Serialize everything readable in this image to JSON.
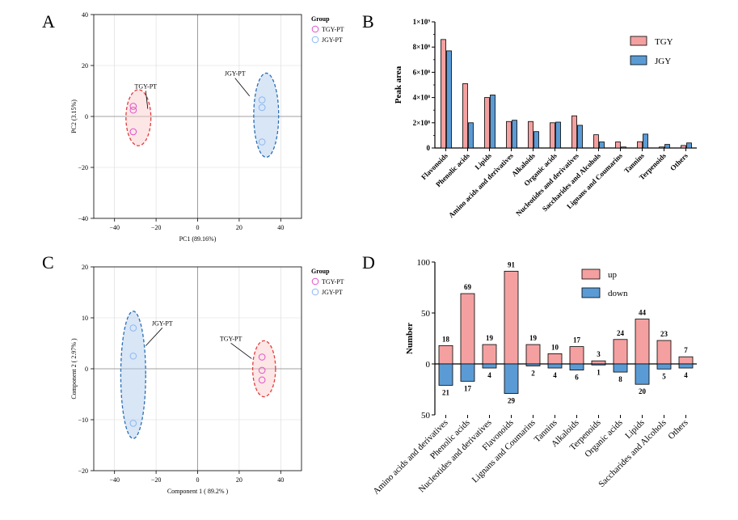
{
  "panels": [
    "A",
    "B",
    "C",
    "D"
  ],
  "colors": {
    "pink": "#f4a0a0",
    "blue": "#5b9bd5",
    "pink_edge": "#e23c3c",
    "blue_edge": "#2a6fb5",
    "point_pink": "#e052c8",
    "point_blue": "#8ab8f0",
    "grid": "#d9d9d9"
  },
  "chart_data": [
    {
      "id": "A",
      "type": "scatter",
      "xlabel": "PC1 (89.16%)",
      "ylabel": "PC2 (3.15%)",
      "xlim": [
        -50,
        50
      ],
      "ylim": [
        -40,
        40
      ],
      "xticks": [
        -40,
        -20,
        0,
        20,
        40
      ],
      "yticks": [
        -40,
        -20,
        0,
        20,
        40
      ],
      "xtick_labels": [
        "−40",
        "−20",
        "0",
        "20",
        "40"
      ],
      "ytick_labels": [
        "−40",
        "−20",
        "0",
        "20",
        "40"
      ],
      "legend_title": "Group",
      "series": [
        {
          "name": "TGY-PT",
          "points": [
            [
              -31,
              4
            ],
            [
              -31,
              2.5
            ],
            [
              -31,
              -6
            ]
          ],
          "ellipse": {
            "cx": -28.5,
            "cy": -0.5,
            "rx": 6,
            "ry": 11
          }
        },
        {
          "name": "JGY-PT",
          "points": [
            [
              31,
              6.5
            ],
            [
              31,
              3.5
            ],
            [
              31,
              -10
            ]
          ],
          "ellipse": {
            "cx": 33,
            "cy": 0.5,
            "rx": 6,
            "ry": 16.5
          }
        }
      ],
      "annotations": [
        {
          "text": "TGY-PT",
          "x": -25,
          "y": 11,
          "arrow_to": [
            -24,
            3
          ]
        },
        {
          "text": "JGY-PT",
          "x": 18,
          "y": 16,
          "arrow_to": [
            25,
            8
          ]
        }
      ]
    },
    {
      "id": "B",
      "type": "bar",
      "ylabel": "Peak area",
      "ylim": [
        0,
        1000000000
      ],
      "yticks": [
        0,
        200000000,
        400000000,
        600000000,
        800000000,
        1000000000
      ],
      "ytick_labels": [
        "0",
        "2×10⁸",
        "4×10⁸",
        "6×10⁸",
        "8×10⁸",
        "1×10⁹"
      ],
      "categories": [
        "Flavonoids",
        "Phenolic acids",
        "Lipids",
        "Amino acids and derivatives",
        "Alkaloids",
        "Organic acids",
        "Nucleotides and derivatives",
        "Saccharides and Alcohols",
        "Lignans and Coumarins",
        "Tannins",
        "Terpenoids",
        "Others"
      ],
      "series": [
        {
          "name": "TGY",
          "values": [
            860000000,
            510000000,
            400000000,
            210000000,
            210000000,
            200000000,
            255000000,
            105000000,
            48000000,
            50000000,
            8000000,
            20000000
          ]
        },
        {
          "name": "JGY",
          "values": [
            770000000,
            200000000,
            420000000,
            220000000,
            130000000,
            205000000,
            180000000,
            48000000,
            8000000,
            110000000,
            28000000,
            40000000
          ]
        }
      ]
    },
    {
      "id": "C",
      "type": "scatter",
      "xlabel": "Component 1 ( 89.2% )",
      "ylabel": "Component 2 ( 2.97% )",
      "xlim": [
        -50,
        50
      ],
      "ylim": [
        -20,
        20
      ],
      "xticks": [
        -40,
        -20,
        0,
        20,
        40
      ],
      "yticks": [
        -20,
        -10,
        0,
        10,
        20
      ],
      "xtick_labels": [
        "−40",
        "−20",
        "0",
        "20",
        "40"
      ],
      "ytick_labels": [
        "−20",
        "−10",
        "0",
        "10",
        "20"
      ],
      "legend_title": "Group",
      "series": [
        {
          "name": "TGY-PT",
          "points": [
            [
              31,
              2.3
            ],
            [
              31,
              -0.3
            ],
            [
              31,
              -2.2
            ]
          ],
          "ellipse": {
            "cx": 32,
            "cy": 0,
            "rx": 5.5,
            "ry": 5.5
          }
        },
        {
          "name": "JGY-PT",
          "points": [
            [
              -31,
              8
            ],
            [
              -31,
              2.5
            ],
            [
              -31,
              -10.7
            ]
          ],
          "ellipse": {
            "cx": -31,
            "cy": -1.2,
            "rx": 6,
            "ry": 12.5
          }
        }
      ],
      "annotations": [
        {
          "text": "JGY-PT",
          "x": -17,
          "y": 8.5,
          "arrow_to": [
            -25,
            4.5
          ]
        },
        {
          "text": "TGY-PT",
          "x": 16,
          "y": 5.5,
          "arrow_to": [
            26,
            2
          ]
        }
      ]
    },
    {
      "id": "D",
      "type": "bar",
      "ylabel": "Number",
      "ylim": [
        -50,
        100
      ],
      "yticks": [
        -50,
        0,
        50,
        100
      ],
      "ytick_labels": [
        "50",
        "0",
        "50",
        "100"
      ],
      "categories": [
        "Amino acids and derivatives",
        "Phenolic acids",
        "Nucleotides and derivatives",
        "Flavonoids",
        "Lignans and Coumarins",
        "Tannins",
        "Alkaloids",
        "Terpenoids",
        "Organic acids",
        "Lipids",
        "Saccharides and Alcohols",
        "Others"
      ],
      "series": [
        {
          "name": "up",
          "values": [
            18,
            69,
            19,
            91,
            19,
            10,
            17,
            3,
            24,
            44,
            23,
            7
          ]
        },
        {
          "name": "down",
          "values": [
            21,
            17,
            4,
            29,
            2,
            4,
            6,
            1,
            8,
            20,
            5,
            4
          ]
        }
      ]
    }
  ]
}
